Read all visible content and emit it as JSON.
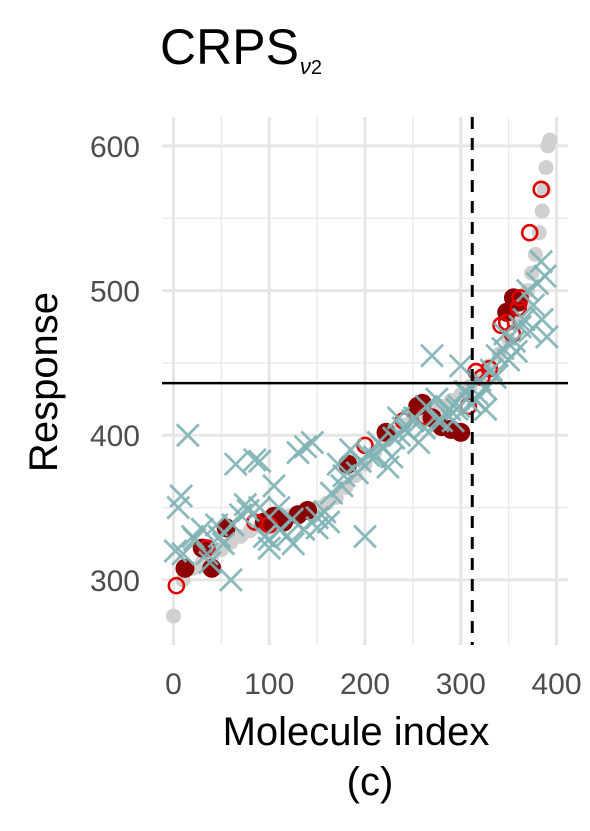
{
  "chart_data": {
    "type": "scatter",
    "title_main": "CRPS",
    "title_sub_symbol": "ν",
    "title_sub_index": "2",
    "xlabel": "Molecule index",
    "ylabel": "Response",
    "caption": "(c)",
    "xlim": [
      -12,
      412
    ],
    "ylim": [
      255,
      620
    ],
    "xticks": [
      0,
      100,
      200,
      300,
      400
    ],
    "yticks": [
      300,
      400,
      500,
      600
    ],
    "hline_y": 436,
    "vline_x": 312,
    "grid": true,
    "colors": {
      "background_curve": "#d0d0d0",
      "filled_points": "#8b0000",
      "open_points": "#e00000",
      "x_marks": "#7fb3b5",
      "reference_lines": "#000000"
    },
    "series": [
      {
        "marker": "filled-circle-grey",
        "points": [
          [
            0,
            275
          ],
          [
            10,
            300
          ],
          [
            20,
            308
          ],
          [
            30,
            312
          ],
          [
            40,
            316
          ],
          [
            50,
            321
          ],
          [
            60,
            326
          ],
          [
            70,
            330
          ],
          [
            80,
            334
          ],
          [
            90,
            337
          ],
          [
            100,
            340
          ],
          [
            110,
            342
          ],
          [
            120,
            344
          ],
          [
            130,
            346
          ],
          [
            140,
            348
          ],
          [
            150,
            350
          ],
          [
            160,
            353
          ],
          [
            170,
            357
          ],
          [
            180,
            364
          ],
          [
            190,
            372
          ],
          [
            200,
            380
          ],
          [
            210,
            388
          ],
          [
            220,
            396
          ],
          [
            230,
            402
          ],
          [
            240,
            407
          ],
          [
            250,
            411
          ],
          [
            260,
            414
          ],
          [
            270,
            417
          ],
          [
            280,
            420
          ],
          [
            290,
            424
          ],
          [
            300,
            428
          ],
          [
            310,
            434
          ],
          [
            320,
            440
          ],
          [
            330,
            448
          ],
          [
            340,
            456
          ],
          [
            350,
            466
          ],
          [
            360,
            478
          ],
          [
            366,
            490
          ],
          [
            370,
            500
          ],
          [
            374,
            512
          ],
          [
            378,
            525
          ],
          [
            382,
            540
          ],
          [
            385,
            555
          ],
          [
            387,
            570
          ],
          [
            389,
            585
          ],
          [
            391,
            600
          ],
          [
            393,
            604
          ]
        ]
      },
      {
        "marker": "filled-circle-darkred",
        "points": [
          [
            12,
            308
          ],
          [
            40,
            308
          ],
          [
            30,
            322
          ],
          [
            55,
            336
          ],
          [
            95,
            340
          ],
          [
            105,
            344
          ],
          [
            115,
            340
          ],
          [
            130,
            345
          ],
          [
            140,
            348
          ],
          [
            182,
            380
          ],
          [
            222,
            402
          ],
          [
            255,
            420
          ],
          [
            260,
            422
          ],
          [
            270,
            412
          ],
          [
            280,
            406
          ],
          [
            290,
            404
          ],
          [
            300,
            402
          ],
          [
            348,
            485
          ],
          [
            355,
            495
          ],
          [
            360,
            492
          ]
        ]
      },
      {
        "marker": "open-circle-red",
        "points": [
          [
            3,
            296
          ],
          [
            35,
            322
          ],
          [
            85,
            340
          ],
          [
            100,
            338
          ],
          [
            200,
            393
          ],
          [
            240,
            410
          ],
          [
            262,
            413
          ],
          [
            308,
            420
          ],
          [
            316,
            444
          ],
          [
            322,
            440
          ],
          [
            330,
            446
          ],
          [
            342,
            476
          ],
          [
            348,
            478
          ],
          [
            354,
            470
          ],
          [
            360,
            488
          ],
          [
            362,
            495
          ],
          [
            372,
            540
          ],
          [
            384,
            570
          ]
        ]
      },
      {
        "marker": "x-teal",
        "points": [
          [
            2,
            320
          ],
          [
            5,
            350
          ],
          [
            8,
            358
          ],
          [
            10,
            318
          ],
          [
            15,
            400
          ],
          [
            22,
            328
          ],
          [
            30,
            335
          ],
          [
            38,
            312
          ],
          [
            45,
            338
          ],
          [
            52,
            325
          ],
          [
            60,
            300
          ],
          [
            65,
            380
          ],
          [
            70,
            345
          ],
          [
            78,
            348
          ],
          [
            85,
            383
          ],
          [
            90,
            382
          ],
          [
            95,
            330
          ],
          [
            100,
            322
          ],
          [
            105,
            365
          ],
          [
            110,
            350
          ],
          [
            118,
            330
          ],
          [
            125,
            325
          ],
          [
            130,
            388
          ],
          [
            138,
            392
          ],
          [
            145,
            395
          ],
          [
            150,
            343
          ],
          [
            158,
            347
          ],
          [
            165,
            360
          ],
          [
            172,
            380
          ],
          [
            178,
            372
          ],
          [
            185,
            390
          ],
          [
            195,
            382
          ],
          [
            200,
            330
          ],
          [
            210,
            385
          ],
          [
            218,
            392
          ],
          [
            224,
            378
          ],
          [
            230,
            398
          ],
          [
            235,
            412
          ],
          [
            240,
            405
          ],
          [
            245,
            402
          ],
          [
            250,
            410
          ],
          [
            256,
            395
          ],
          [
            264,
            420
          ],
          [
            270,
            455
          ],
          [
            275,
            425
          ],
          [
            280,
            410
          ],
          [
            285,
            415
          ],
          [
            292,
            410
          ],
          [
            298,
            420
          ],
          [
            300,
            448
          ],
          [
            304,
            430
          ],
          [
            310,
            422
          ],
          [
            316,
            424
          ],
          [
            320,
            438
          ],
          [
            326,
            432
          ],
          [
            332,
            445
          ],
          [
            338,
            455
          ],
          [
            344,
            460
          ],
          [
            350,
            452
          ],
          [
            356,
            465
          ],
          [
            362,
            475
          ],
          [
            366,
            480
          ],
          [
            370,
            500
          ],
          [
            376,
            490
          ],
          [
            380,
            505
          ],
          [
            384,
            520
          ],
          [
            388,
            510
          ],
          [
            390,
            468
          ],
          [
            385,
            480
          ],
          [
            372,
            472
          ],
          [
            358,
            458
          ],
          [
            346,
            470
          ],
          [
            336,
            440
          ],
          [
            326,
            418
          ],
          [
            318,
            428
          ],
          [
            306,
            430
          ],
          [
            296,
            418
          ],
          [
            288,
            418
          ],
          [
            276,
            410
          ],
          [
            262,
            405
          ],
          [
            252,
            412
          ],
          [
            236,
            400
          ],
          [
            228,
            385
          ],
          [
            214,
            395
          ],
          [
            204,
            386
          ],
          [
            192,
            374
          ],
          [
            176,
            365
          ],
          [
            162,
            340
          ],
          [
            150,
            336
          ],
          [
            136,
            335
          ],
          [
            124,
            342
          ],
          [
            112,
            335
          ],
          [
            100,
            328
          ],
          [
            90,
            350
          ],
          [
            75,
            352
          ],
          [
            62,
            338
          ],
          [
            48,
            330
          ],
          [
            35,
            318
          ],
          [
            20,
            330
          ]
        ]
      }
    ]
  }
}
